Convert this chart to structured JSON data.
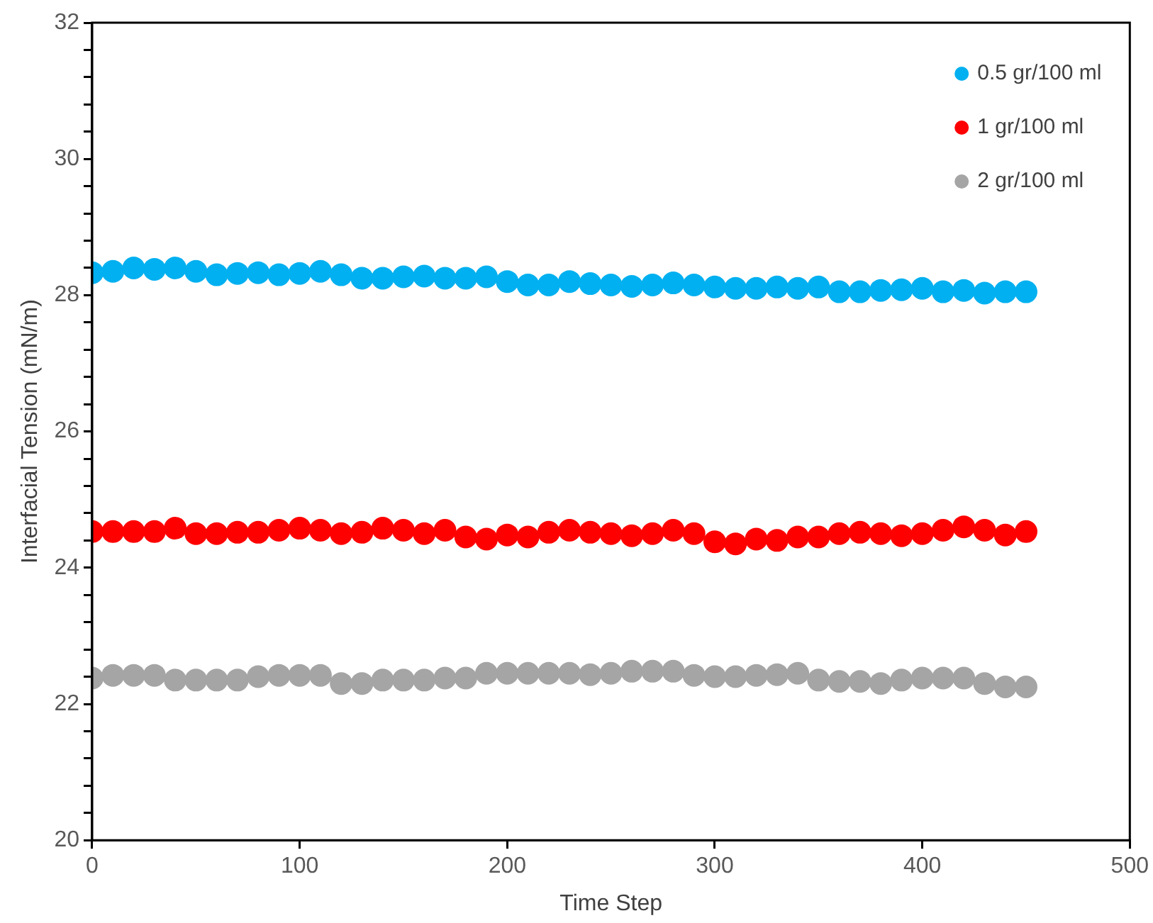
{
  "chart_data": {
    "type": "scatter",
    "xlabel": "Time Step",
    "ylabel": "Interfacial Tension (mN/m)",
    "x": [
      0,
      10,
      20,
      30,
      40,
      50,
      60,
      70,
      80,
      90,
      100,
      110,
      120,
      130,
      140,
      150,
      160,
      170,
      180,
      190,
      200,
      210,
      220,
      230,
      240,
      250,
      260,
      270,
      280,
      290,
      300,
      310,
      320,
      330,
      340,
      350,
      360,
      370,
      380,
      390,
      400,
      410,
      420,
      430,
      440,
      450
    ],
    "series": [
      {
        "name": "0.5 gr/100 ml",
        "color": "#00b0f0",
        "values": [
          28.33,
          28.35,
          28.4,
          28.38,
          28.4,
          28.35,
          28.3,
          28.32,
          28.33,
          28.3,
          28.32,
          28.35,
          28.3,
          28.25,
          28.25,
          28.27,
          28.28,
          28.25,
          28.25,
          28.27,
          28.2,
          28.15,
          28.15,
          28.2,
          28.17,
          28.15,
          28.13,
          28.15,
          28.18,
          28.15,
          28.12,
          28.1,
          28.1,
          28.12,
          28.1,
          28.12,
          28.05,
          28.05,
          28.07,
          28.08,
          28.1,
          28.05,
          28.07,
          28.03,
          28.05,
          28.05
        ]
      },
      {
        "name": "1 gr/100 ml",
        "color": "#ff0000",
        "values": [
          24.53,
          24.53,
          24.53,
          24.53,
          24.58,
          24.5,
          24.5,
          24.52,
          24.52,
          24.55,
          24.58,
          24.55,
          24.5,
          24.52,
          24.58,
          24.55,
          24.5,
          24.55,
          24.45,
          24.42,
          24.48,
          24.45,
          24.52,
          24.55,
          24.52,
          24.5,
          24.47,
          24.5,
          24.55,
          24.5,
          24.38,
          24.35,
          24.42,
          24.4,
          24.45,
          24.45,
          24.5,
          24.52,
          24.5,
          24.47,
          24.5,
          24.55,
          24.6,
          24.55,
          24.48,
          24.53
        ]
      },
      {
        "name": "2 gr/100 ml",
        "color": "#a5a5a5",
        "values": [
          22.38,
          22.42,
          22.42,
          22.42,
          22.35,
          22.35,
          22.35,
          22.35,
          22.4,
          22.42,
          22.42,
          22.42,
          22.3,
          22.3,
          22.35,
          22.35,
          22.35,
          22.38,
          22.38,
          22.45,
          22.45,
          22.45,
          22.45,
          22.45,
          22.43,
          22.45,
          22.48,
          22.48,
          22.48,
          22.42,
          22.4,
          22.4,
          22.42,
          22.43,
          22.45,
          22.35,
          22.33,
          22.33,
          22.3,
          22.35,
          22.38,
          22.38,
          22.38,
          22.3,
          22.25,
          22.25
        ]
      }
    ],
    "xlim": [
      0,
      500
    ],
    "xticks": [
      0,
      100,
      200,
      300,
      400,
      500
    ],
    "ylim": [
      20,
      32
    ],
    "yticks": [
      20,
      {
        "value": 20.4,
        "label": null
      },
      {
        "value": 20.8,
        "label": null
      },
      {
        "value": 21.2,
        "label": null
      },
      {
        "value": 21.6,
        "label": null
      },
      22,
      {
        "value": 22.4,
        "label": null
      },
      {
        "value": 22.8,
        "label": null
      },
      {
        "value": 23.2,
        "label": null
      },
      {
        "value": 23.6,
        "label": null
      },
      24,
      {
        "value": 24.4,
        "label": null
      },
      {
        "value": 24.8,
        "label": null
      },
      {
        "value": 25.2,
        "label": null
      },
      {
        "value": 25.6,
        "label": null
      },
      26,
      {
        "value": 26.4,
        "label": null
      },
      {
        "value": 26.8,
        "label": null
      },
      {
        "value": 27.2,
        "label": null
      },
      {
        "value": 27.6,
        "label": null
      },
      28,
      {
        "value": 28.4,
        "label": null
      },
      {
        "value": 28.8,
        "label": null
      },
      {
        "value": 29.2,
        "label": null
      },
      {
        "value": 29.6,
        "label": null
      },
      30,
      {
        "value": 30.4,
        "label": null
      },
      {
        "value": 30.8,
        "label": null
      },
      {
        "value": 31.2,
        "label": null
      },
      {
        "value": 31.6,
        "label": null
      },
      32
    ],
    "grid": false,
    "legend": "top right",
    "marker": "circle"
  }
}
